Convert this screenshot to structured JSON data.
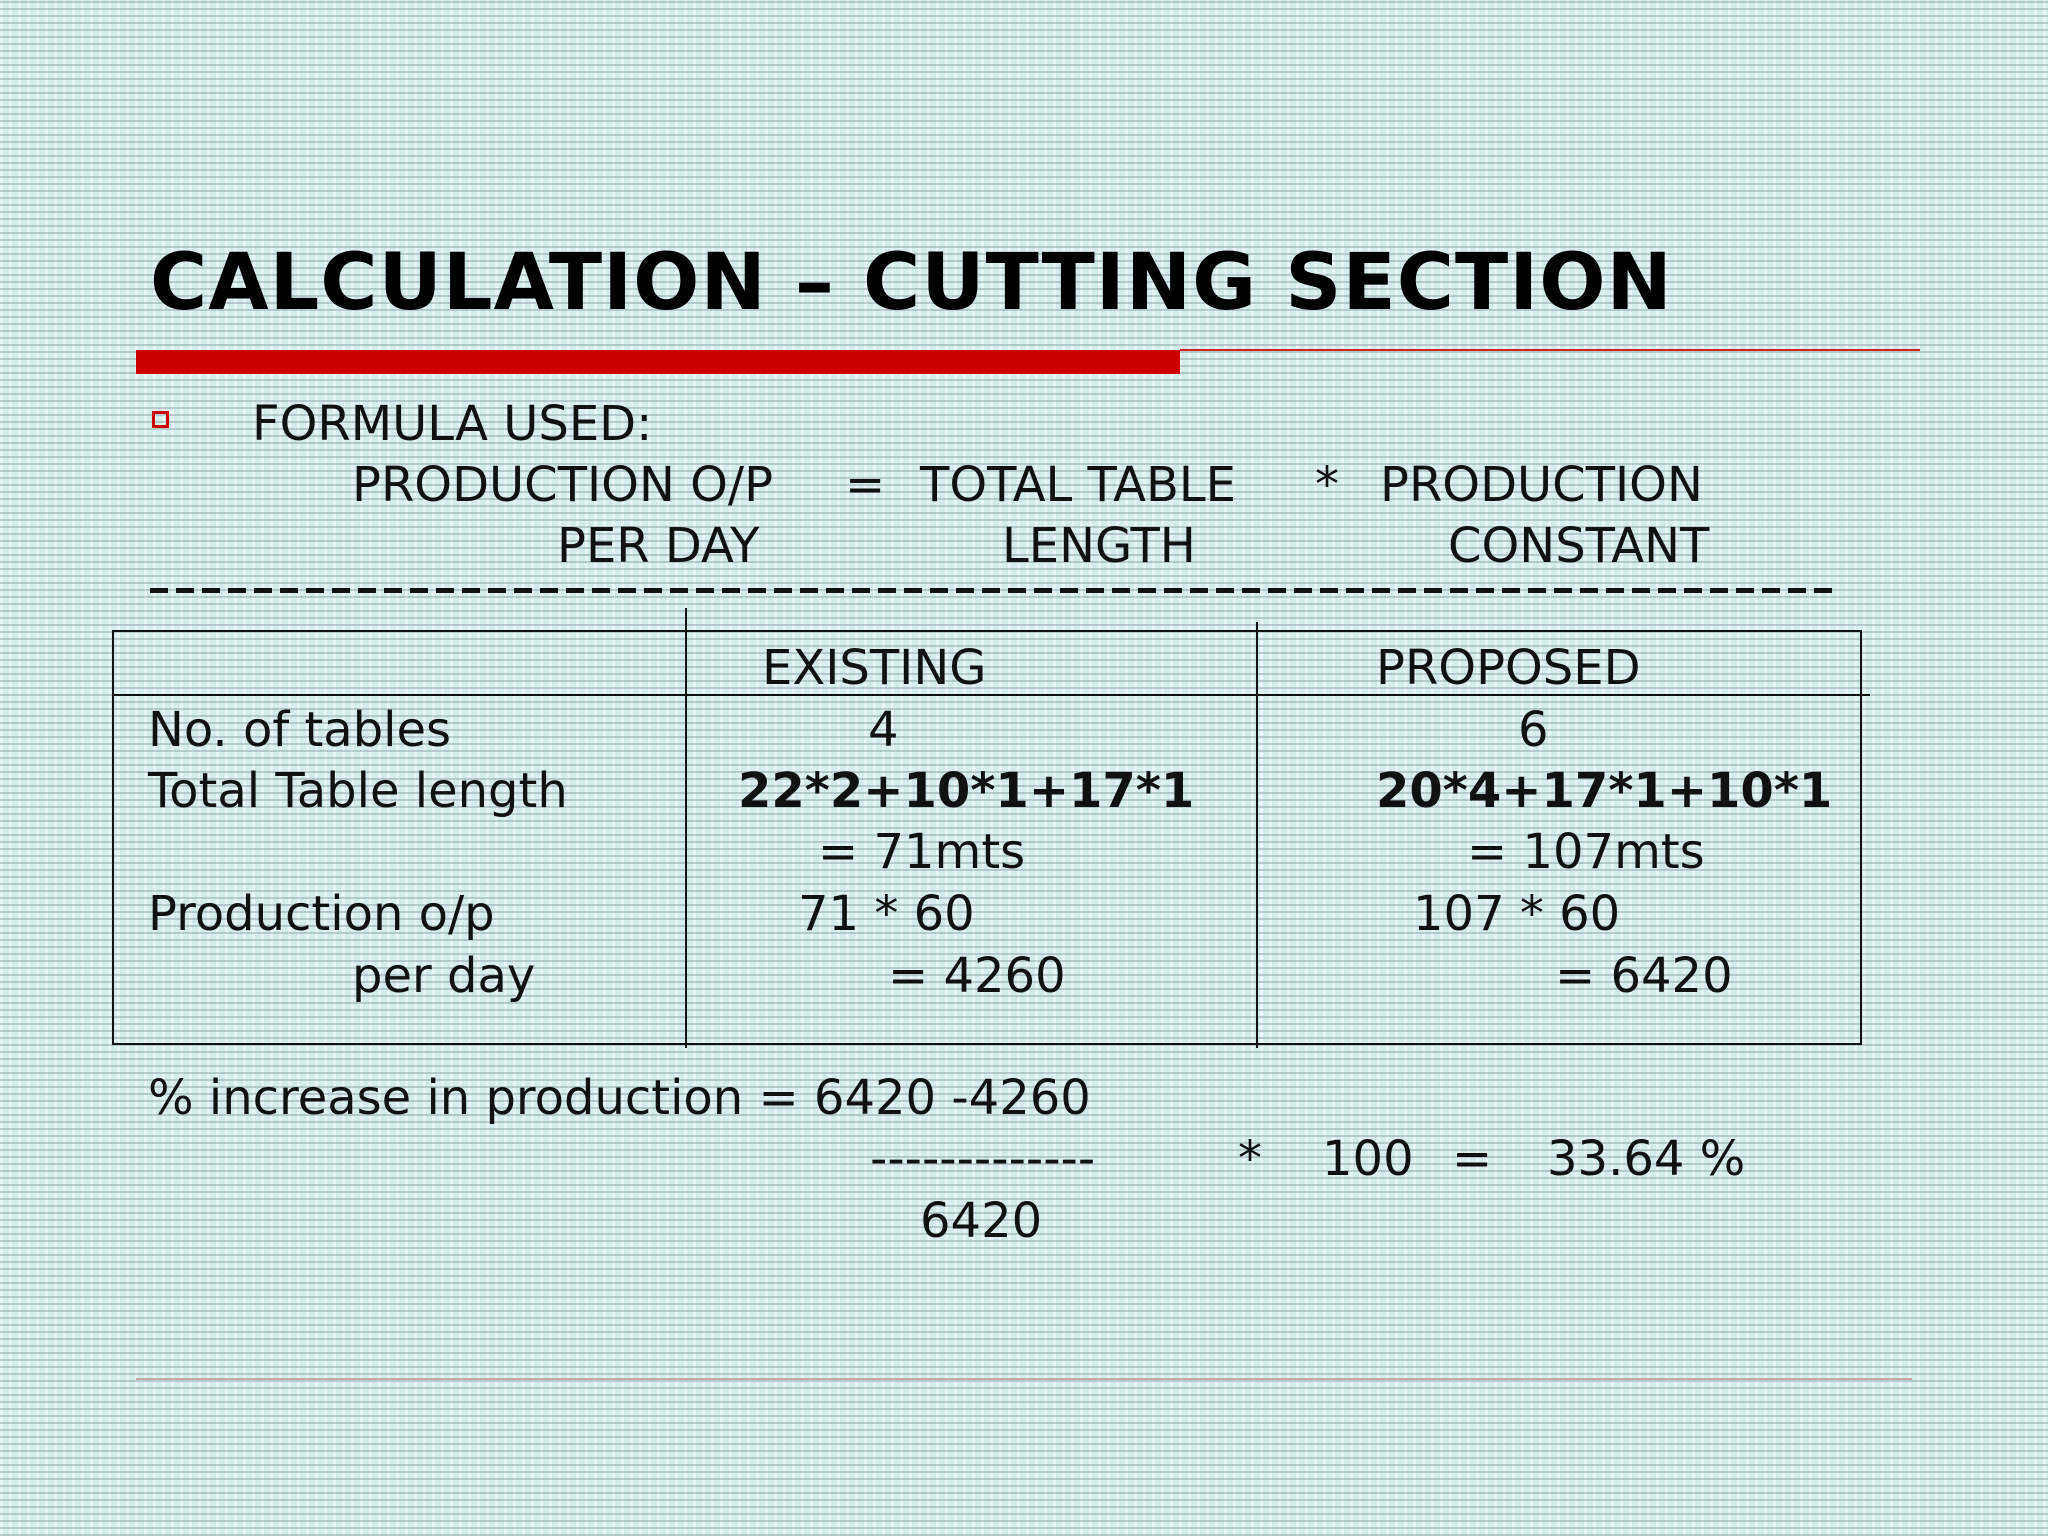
{
  "title": "CALCULATION – CUTTING SECTION",
  "formula": {
    "label": "FORMULA USED:",
    "line1": {
      "term1": "PRODUCTION O/P",
      "equals": "=",
      "term2": "TOTAL TABLE",
      "times": "*",
      "term3": "PRODUCTION"
    },
    "line2": {
      "term1": "PER DAY",
      "term2": "LENGTH",
      "term3": "CONSTANT"
    }
  },
  "table": {
    "headers": [
      "",
      "EXISTING",
      "PROPOSED"
    ],
    "rows": {
      "tables": {
        "label": "No. of tables",
        "existing": "4",
        "proposed": "6"
      },
      "length": {
        "label": "Total Table length",
        "existing_formula": "22*2+10*1+17*1",
        "existing_result": "= 71mts",
        "proposed_formula": "20*4+17*1+10*1",
        "proposed_result": "= 107mts"
      },
      "production": {
        "label1": "Production o/p",
        "label2": "per day",
        "existing_formula": "71 * 60",
        "existing_result": "= 4260",
        "proposed_formula": "107 * 60",
        "proposed_result": "= 6420"
      }
    }
  },
  "increase": {
    "label": "% increase in production = 6420 -4260",
    "dashes": "-------------",
    "times": "*",
    "hundred": "100",
    "equals": "=",
    "result": "33.64 %",
    "denominator": "6420"
  }
}
